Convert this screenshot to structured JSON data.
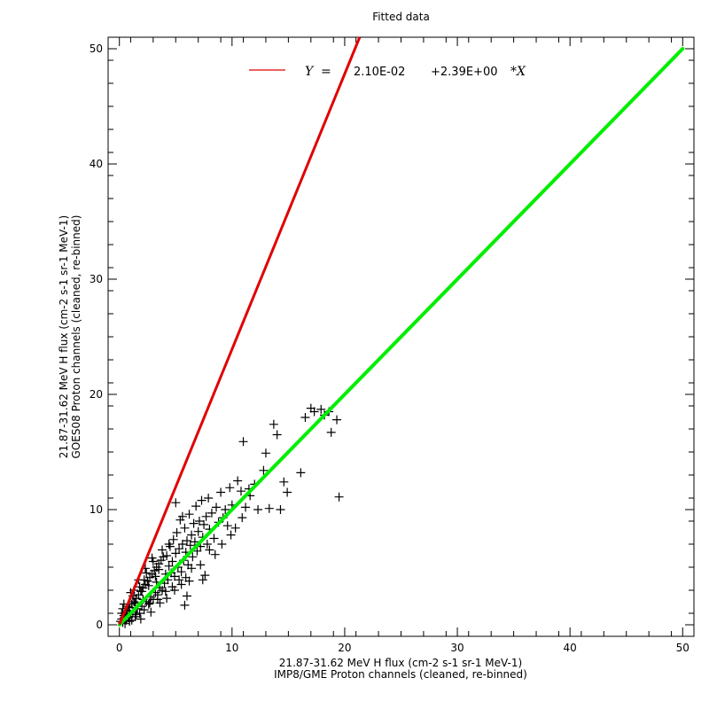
{
  "chart_data": {
    "type": "scatter",
    "title": "Fitted data",
    "xlabel": [
      "21.87-31.62 MeV H flux (cm-2 s-1 sr-1 MeV-1)",
      "IMP8/GME Proton channels (cleaned, re-binned)"
    ],
    "ylabel": [
      "21.87-31.62 MeV H flux (cm-2 s-1 sr-1 MeV-1)",
      "GOES08 Proton channels (cleaned, re-binned)"
    ],
    "xlim": [
      -1,
      51
    ],
    "ylim": [
      -1,
      51
    ],
    "xticks": [
      0,
      10,
      20,
      30,
      40,
      50
    ],
    "yticks": [
      0,
      10,
      20,
      30,
      40,
      50
    ],
    "xtick_labels": [
      "0",
      "10",
      "20",
      "30",
      "40",
      "50"
    ],
    "ytick_labels": [
      "0",
      "10",
      "20",
      "30",
      "40",
      "50"
    ],
    "grid": false,
    "legend": {
      "placement": "top-center",
      "y_symbol": "Y",
      "equals": "=",
      "intercept_text": "2.10E-02",
      "slope_text": "+2.39E+00",
      "x_symbol": "*X"
    },
    "fit_line": {
      "color": "#e00000",
      "intercept": 0.021,
      "slope": 2.39
    },
    "reference_line": {
      "color": "#00ee00",
      "x": [
        0,
        50
      ],
      "y": [
        0,
        50
      ]
    },
    "scatter": {
      "marker": "plus",
      "color": "#000000",
      "points": [
        [
          0.1,
          0.3
        ],
        [
          0.2,
          0.5
        ],
        [
          0.3,
          0.2
        ],
        [
          0.4,
          0.8
        ],
        [
          0.5,
          1.0
        ],
        [
          0.6,
          0.4
        ],
        [
          0.7,
          1.2
        ],
        [
          0.8,
          0.6
        ],
        [
          0.9,
          1.5
        ],
        [
          1.0,
          0.9
        ],
        [
          1.1,
          1.8
        ],
        [
          1.2,
          1.1
        ],
        [
          1.3,
          2.0
        ],
        [
          1.4,
          0.7
        ],
        [
          1.5,
          2.3
        ],
        [
          1.6,
          1.4
        ],
        [
          1.7,
          2.6
        ],
        [
          1.8,
          1.0
        ],
        [
          1.9,
          2.9
        ],
        [
          2.0,
          1.6
        ],
        [
          2.1,
          3.2
        ],
        [
          2.2,
          1.3
        ],
        [
          2.3,
          3.5
        ],
        [
          2.4,
          2.0
        ],
        [
          2.5,
          3.8
        ],
        [
          2.6,
          1.8
        ],
        [
          2.7,
          4.1
        ],
        [
          2.8,
          2.4
        ],
        [
          2.9,
          4.4
        ],
        [
          3.0,
          2.2
        ],
        [
          3.1,
          4.7
        ],
        [
          3.2,
          2.8
        ],
        [
          3.3,
          5.0
        ],
        [
          3.4,
          2.6
        ],
        [
          3.5,
          5.3
        ],
        [
          3.6,
          3.2
        ],
        [
          3.7,
          5.6
        ],
        [
          3.8,
          3.0
        ],
        [
          3.9,
          5.9
        ],
        [
          4.0,
          3.6
        ],
        [
          0.5,
          0.1
        ],
        [
          0.8,
          1.6
        ],
        [
          1.2,
          2.5
        ],
        [
          1.5,
          0.9
        ],
        [
          1.8,
          3.3
        ],
        [
          2.1,
          2.2
        ],
        [
          2.4,
          4.5
        ],
        [
          2.7,
          1.9
        ],
        [
          3.0,
          5.5
        ],
        [
          3.3,
          3.7
        ],
        [
          0.3,
          1.4
        ],
        [
          0.6,
          0.9
        ],
        [
          1.0,
          2.8
        ],
        [
          1.4,
          1.9
        ],
        [
          1.7,
          3.9
        ],
        [
          2.0,
          2.9
        ],
        [
          2.3,
          4.9
        ],
        [
          2.6,
          3.4
        ],
        [
          2.9,
          5.8
        ],
        [
          3.2,
          4.2
        ],
        [
          4.1,
          4.4
        ],
        [
          4.2,
          6.0
        ],
        [
          4.3,
          3.9
        ],
        [
          4.4,
          5.1
        ],
        [
          4.5,
          6.8
        ],
        [
          4.6,
          4.5
        ],
        [
          4.7,
          5.5
        ],
        [
          4.8,
          7.4
        ],
        [
          4.9,
          4.2
        ],
        [
          5.0,
          6.2
        ],
        [
          5.1,
          8.0
        ],
        [
          5.2,
          5.0
        ],
        [
          5.3,
          6.6
        ],
        [
          5.4,
          9.1
        ],
        [
          5.5,
          4.6
        ],
        [
          5.6,
          7.0
        ],
        [
          5.7,
          5.6
        ],
        [
          5.8,
          8.4
        ],
        [
          5.9,
          6.3
        ],
        [
          6.0,
          7.3
        ],
        [
          6.1,
          5.2
        ],
        [
          6.2,
          9.6
        ],
        [
          6.3,
          6.9
        ],
        [
          6.4,
          7.8
        ],
        [
          6.5,
          5.9
        ],
        [
          6.6,
          8.8
        ],
        [
          6.7,
          7.2
        ],
        [
          6.8,
          10.3
        ],
        [
          6.9,
          6.4
        ],
        [
          7.0,
          8.1
        ],
        [
          7.1,
          9.0
        ],
        [
          7.2,
          6.8
        ],
        [
          7.3,
          10.8
        ],
        [
          7.4,
          7.6
        ],
        [
          7.5,
          8.7
        ],
        [
          7.6,
          4.3
        ],
        [
          7.7,
          9.4
        ],
        [
          7.8,
          7.0
        ],
        [
          7.9,
          11.0
        ],
        [
          8.0,
          8.3
        ],
        [
          8.2,
          9.7
        ],
        [
          8.4,
          7.5
        ],
        [
          8.6,
          10.2
        ],
        [
          8.8,
          8.9
        ],
        [
          9.0,
          11.5
        ],
        [
          9.2,
          9.3
        ],
        [
          9.4,
          10.0
        ],
        [
          9.6,
          8.6
        ],
        [
          9.8,
          11.9
        ],
        [
          10.0,
          10.4
        ],
        [
          3.5,
          4.8
        ],
        [
          3.8,
          6.5
        ],
        [
          4.1,
          2.9
        ],
        [
          4.4,
          7.0
        ],
        [
          4.7,
          3.3
        ],
        [
          5.0,
          10.6
        ],
        [
          5.3,
          3.9
        ],
        [
          5.6,
          9.4
        ],
        [
          5.9,
          4.1
        ],
        [
          6.2,
          3.8
        ],
        [
          1.1,
          0.4
        ],
        [
          1.9,
          0.5
        ],
        [
          2.8,
          1.1
        ],
        [
          3.6,
          1.9
        ],
        [
          4.2,
          2.3
        ],
        [
          4.9,
          3.0
        ],
        [
          5.5,
          3.5
        ],
        [
          6.4,
          4.9
        ],
        [
          7.2,
          5.2
        ],
        [
          8.0,
          6.5
        ],
        [
          6.0,
          2.5
        ],
        [
          7.4,
          3.9
        ],
        [
          5.8,
          1.7
        ],
        [
          8.5,
          6.1
        ],
        [
          9.1,
          7.0
        ],
        [
          9.9,
          7.8
        ],
        [
          10.3,
          8.4
        ],
        [
          10.9,
          9.3
        ],
        [
          11.2,
          10.2
        ],
        [
          11.6,
          11.2
        ],
        [
          10.5,
          12.5
        ],
        [
          10.8,
          11.6
        ],
        [
          11.0,
          15.9
        ],
        [
          11.5,
          11.8
        ],
        [
          12.0,
          12.2
        ],
        [
          12.3,
          10.0
        ],
        [
          12.8,
          13.4
        ],
        [
          13.0,
          14.9
        ],
        [
          13.3,
          10.1
        ],
        [
          13.7,
          17.4
        ],
        [
          14.0,
          16.5
        ],
        [
          14.3,
          10.0
        ],
        [
          14.6,
          12.4
        ],
        [
          14.9,
          11.5
        ],
        [
          16.1,
          13.2
        ],
        [
          16.5,
          18.0
        ],
        [
          17.0,
          18.8
        ],
        [
          17.3,
          18.5
        ],
        [
          17.9,
          18.7
        ],
        [
          18.2,
          18.2
        ],
        [
          18.6,
          18.5
        ],
        [
          18.8,
          16.7
        ],
        [
          19.3,
          17.8
        ],
        [
          19.5,
          11.1
        ],
        [
          0.2,
          1.0
        ],
        [
          0.4,
          1.8
        ],
        [
          0.9,
          0.3
        ],
        [
          1.3,
          3.0
        ],
        [
          2.2,
          3.9
        ],
        [
          3.4,
          2.2
        ]
      ]
    }
  }
}
